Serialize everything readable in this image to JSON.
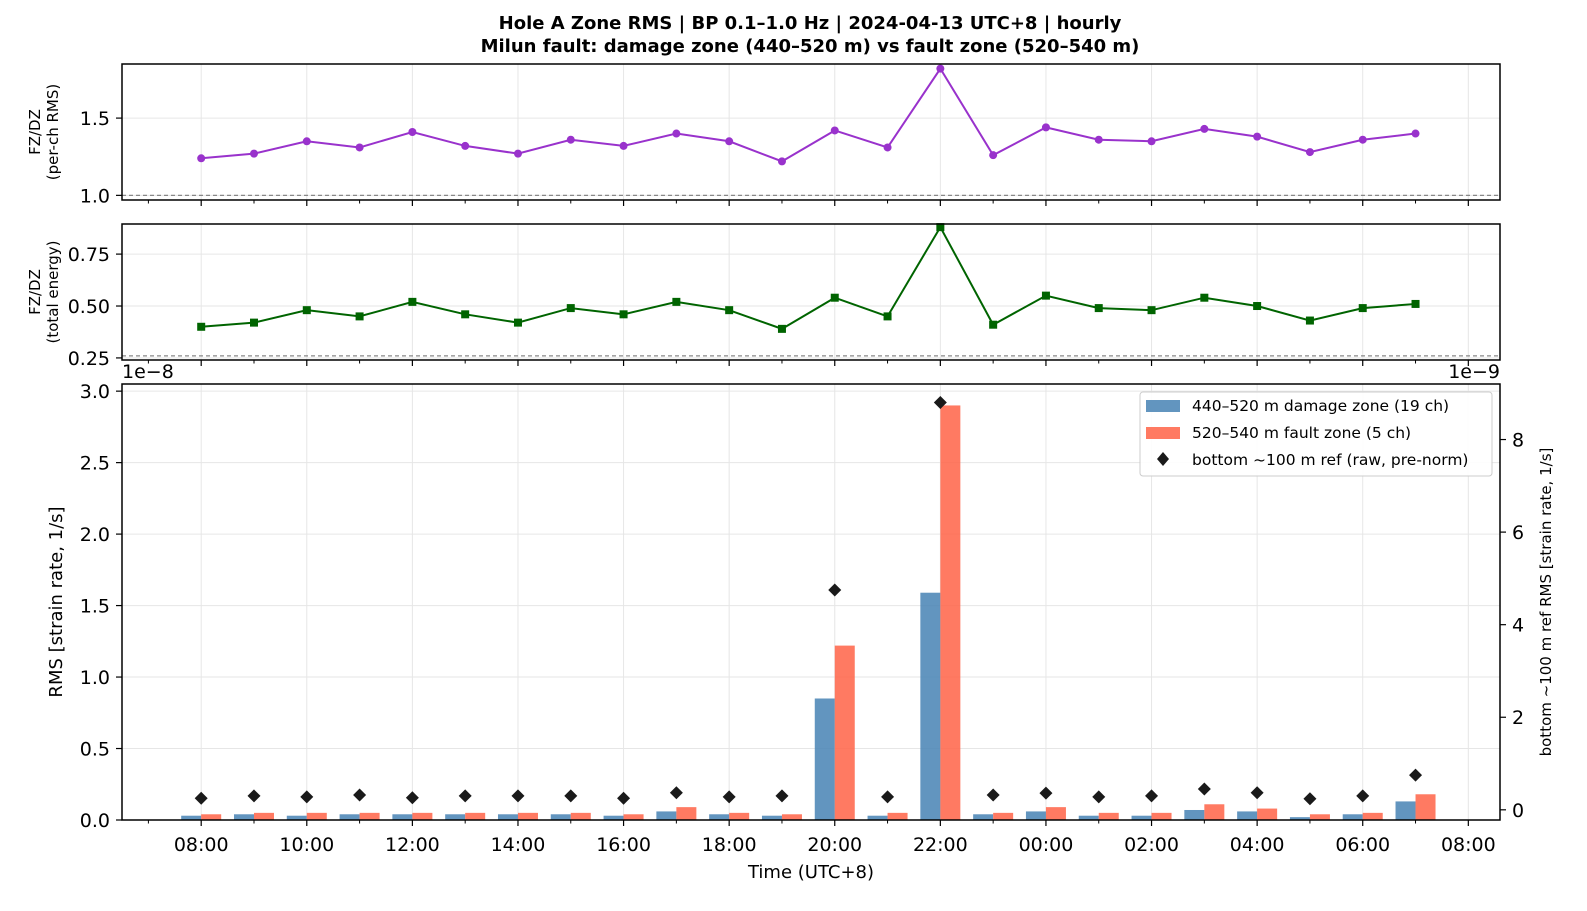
{
  "figure": {
    "title_line1": "Hole A Zone RMS  |  BP 0.1–1.0 Hz  |  2024-04-13 UTC+8  |  hourly",
    "title_line2": "Milun fault: damage zone (440–520 m) vs fault zone (520–540 m)"
  },
  "colors": {
    "ratio_rms": "#9932CC",
    "ratio_energy": "#006400",
    "damage_zone": "#4682B4",
    "fault_zone": "#FF6347",
    "reference": "#1a1a1a"
  },
  "chart_data": [
    {
      "type": "line",
      "ylabel_line1": "FZ/DZ",
      "ylabel_line2": "(per-ch RMS)",
      "ylim": [
        0.97,
        1.85
      ],
      "yticks": [
        "1.0",
        "1.5"
      ],
      "ref_line": 1.0,
      "x_hours": [
        8,
        9,
        10,
        11,
        12,
        13,
        14,
        15,
        16,
        17,
        18,
        19,
        20,
        21,
        22,
        23,
        24,
        25,
        26,
        27,
        28,
        29,
        30,
        31
      ],
      "values": [
        1.24,
        1.27,
        1.35,
        1.31,
        1.41,
        1.32,
        1.27,
        1.36,
        1.32,
        1.4,
        1.35,
        1.22,
        1.42,
        1.31,
        1.82,
        1.26,
        1.44,
        1.36,
        1.35,
        1.43,
        1.38,
        1.28,
        1.36,
        1.4
      ]
    },
    {
      "type": "line",
      "ylabel_line1": "FZ/DZ",
      "ylabel_line2": "(total energy)",
      "ylim": [
        0.24,
        0.895
      ],
      "yticks": [
        "0.25",
        "0.50",
        "0.75"
      ],
      "ref_line": 0.26,
      "x_hours": [
        8,
        9,
        10,
        11,
        12,
        13,
        14,
        15,
        16,
        17,
        18,
        19,
        20,
        21,
        22,
        23,
        24,
        25,
        26,
        27,
        28,
        29,
        30,
        31
      ],
      "values": [
        0.4,
        0.42,
        0.48,
        0.45,
        0.52,
        0.46,
        0.42,
        0.49,
        0.46,
        0.52,
        0.48,
        0.39,
        0.54,
        0.45,
        0.88,
        0.41,
        0.55,
        0.49,
        0.48,
        0.54,
        0.5,
        0.43,
        0.49,
        0.51
      ]
    },
    {
      "type": "bar",
      "ylabel": "RMS  [strain rate, 1/s]",
      "y2label": "bottom ~100 m ref RMS  [strain rate, 1/s]",
      "xlabel": "Time (UTC+8)",
      "offset_left": "1e−8",
      "offset_right": "1e−9",
      "ylim": [
        0,
        3.05
      ],
      "yticks": [
        "0.0",
        "0.5",
        "1.0",
        "1.5",
        "2.0",
        "2.5",
        "3.0"
      ],
      "y2lim": [
        -0.22,
        9.2
      ],
      "y2ticks": [
        "0",
        "2",
        "4",
        "6",
        "8"
      ],
      "xlim": [
        6.5,
        32.6
      ],
      "x_tick_labels": [
        "08:00",
        "10:00",
        "12:00",
        "14:00",
        "16:00",
        "18:00",
        "20:00",
        "22:00",
        "00:00",
        "02:00",
        "04:00",
        "06:00",
        "08:00"
      ],
      "x_hours": [
        8,
        9,
        10,
        11,
        12,
        13,
        14,
        15,
        16,
        17,
        18,
        19,
        20,
        21,
        22,
        23,
        24,
        25,
        26,
        27,
        28,
        29,
        30,
        31
      ],
      "series": [
        {
          "name": "440–520 m  damage zone (19 ch)",
          "values": [
            0.03,
            0.04,
            0.03,
            0.04,
            0.04,
            0.04,
            0.04,
            0.04,
            0.03,
            0.06,
            0.04,
            0.03,
            0.85,
            0.03,
            1.59,
            0.04,
            0.06,
            0.03,
            0.03,
            0.07,
            0.06,
            0.02,
            0.04,
            0.13
          ]
        },
        {
          "name": "520–540 m  fault zone (5 ch)",
          "values": [
            0.04,
            0.05,
            0.05,
            0.05,
            0.05,
            0.05,
            0.05,
            0.05,
            0.04,
            0.09,
            0.05,
            0.04,
            1.22,
            0.05,
            2.9,
            0.05,
            0.09,
            0.05,
            0.05,
            0.11,
            0.08,
            0.04,
            0.05,
            0.18
          ]
        },
        {
          "name": "bottom ~100 m ref (raw, pre-norm)",
          "values": [
            0.25,
            0.3,
            0.28,
            0.32,
            0.26,
            0.3,
            0.3,
            0.3,
            0.25,
            0.37,
            0.28,
            0.3,
            4.75,
            0.28,
            8.8,
            0.32,
            0.36,
            0.28,
            0.3,
            0.45,
            0.37,
            0.24,
            0.3,
            0.75
          ]
        }
      ]
    }
  ]
}
